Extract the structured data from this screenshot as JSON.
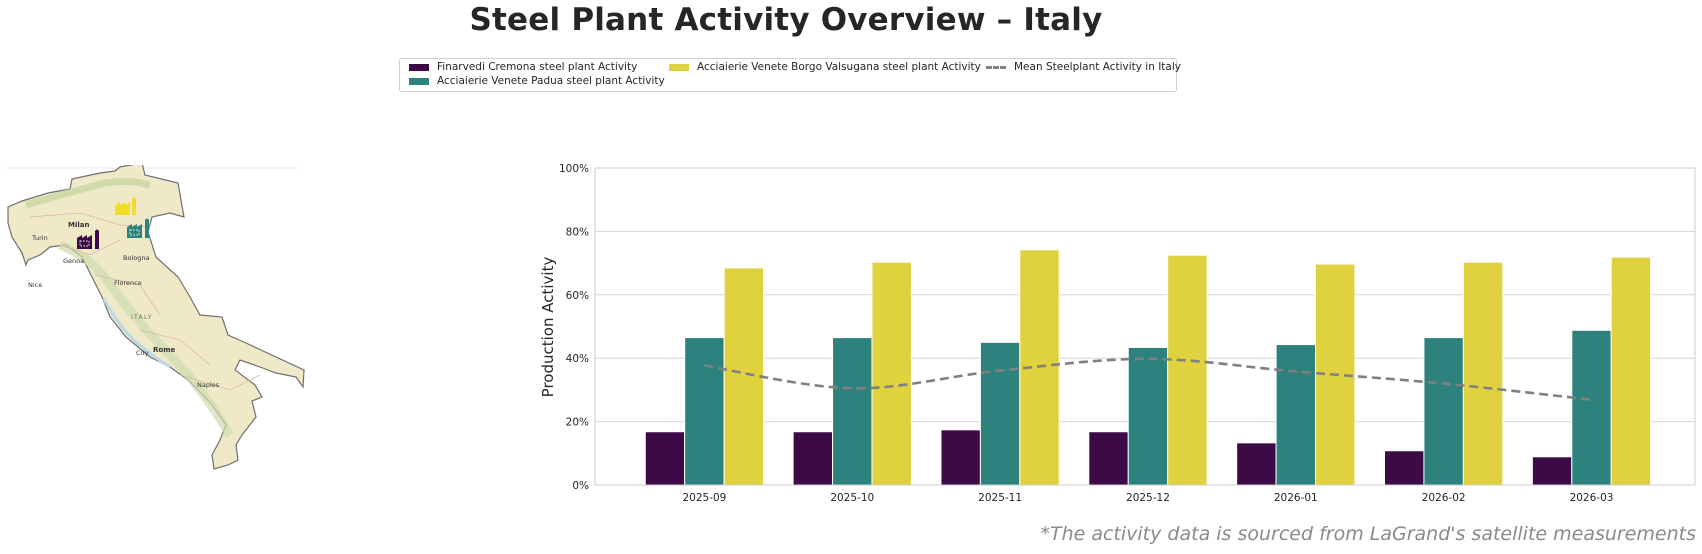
{
  "page": {
    "title": "Steel Plant Activity Overview – Italy",
    "footnote": "*The activity data is sourced from LaGrand's satellite measurements"
  },
  "legend": {
    "items": [
      {
        "label": "Finarvedi Cremona steel plant Activity",
        "color": "#3b0a47",
        "kind": "bar"
      },
      {
        "label": "Acciaierie Venete Padua steel plant Activity",
        "color": "#2d827d",
        "kind": "bar"
      },
      {
        "label": "Acciaierie Venete Borgo Valsugana steel plant Activity",
        "color": "#e0d23e",
        "kind": "bar"
      },
      {
        "label": "Mean Steelplant Activity in Italy",
        "color": "#808080",
        "kind": "dashed-line"
      }
    ]
  },
  "map": {
    "country_label": "ITALY",
    "cities": [
      "Milan",
      "Turin",
      "Genoa",
      "Bologna",
      "Florence",
      "Rome",
      "City",
      "Naples",
      "Nice"
    ],
    "markers": [
      {
        "name": "Finarvedi Cremona",
        "color": "#3b0a47",
        "icon": "factory-icon"
      },
      {
        "name": "Acciaierie Venete Padua",
        "color": "#2d827d",
        "icon": "factory-icon"
      },
      {
        "name": "Acciaierie Venete Borgo Valsugana",
        "color": "#f2dc2a",
        "icon": "factory-icon"
      }
    ]
  },
  "chart_data": {
    "type": "bar",
    "title": "Steel Plant Activity Overview – Italy",
    "xlabel": "",
    "ylabel": "Production Activity",
    "ylim": [
      0,
      100
    ],
    "yticks": [
      0,
      20,
      40,
      60,
      80,
      100
    ],
    "ytick_labels": [
      "0%",
      "20%",
      "40%",
      "60%",
      "80%",
      "100%"
    ],
    "grid": "horizontal",
    "legend_position": "top-center",
    "categories": [
      "2025-09",
      "2025-10",
      "2025-11",
      "2025-12",
      "2026-01",
      "2026-02",
      "2026-03"
    ],
    "series": [
      {
        "name": "Finarvedi Cremona steel plant Activity",
        "type": "bar",
        "color": "#3b0a47",
        "values": [
          16.8,
          16.8,
          17.4,
          16.8,
          13.3,
          10.8,
          8.9
        ]
      },
      {
        "name": "Acciaierie Venete Padua steel plant Activity",
        "type": "bar",
        "color": "#2d827d",
        "values": [
          46.5,
          46.5,
          45.0,
          43.4,
          44.3,
          46.5,
          48.8
        ]
      },
      {
        "name": "Acciaierie Venete Borgo Valsugana steel plant Activity",
        "type": "bar",
        "color": "#e0d23e",
        "values": [
          68.5,
          70.3,
          74.2,
          72.5,
          69.7,
          70.3,
          71.9
        ]
      },
      {
        "name": "Mean Steelplant Activity in Italy",
        "type": "line",
        "style": "dashed",
        "color": "#808080",
        "values": [
          37.7,
          30.5,
          36.1,
          39.8,
          35.8,
          32.0,
          26.9
        ]
      }
    ]
  }
}
